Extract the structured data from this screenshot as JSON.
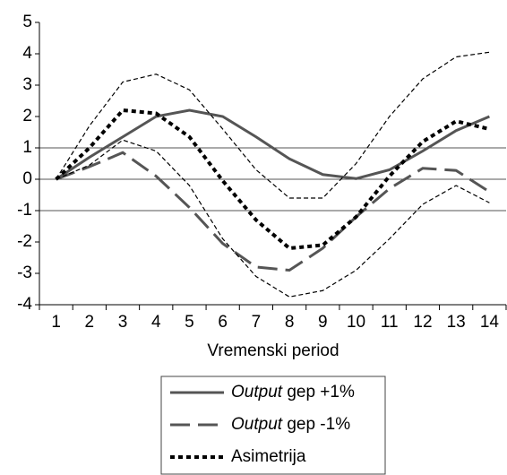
{
  "chart_data": {
    "type": "line",
    "x": [
      1,
      2,
      3,
      4,
      5,
      6,
      7,
      8,
      9,
      10,
      11,
      12,
      13,
      14
    ],
    "xlabel": "Vremenski period",
    "xlim": [
      0.5,
      14.5
    ],
    "xticks": [
      1,
      2,
      3,
      4,
      5,
      6,
      7,
      8,
      9,
      10,
      11,
      12,
      13,
      14
    ],
    "ylim": [
      -4,
      5
    ],
    "yticks": [
      -4,
      -3,
      -2,
      -1,
      0,
      1,
      2,
      3,
      4,
      5
    ],
    "hlines": [
      -1,
      0,
      1
    ],
    "series": [
      {
        "name": "Output gep +1%",
        "color": "#555555",
        "style": "solid",
        "width": 3,
        "values": [
          0,
          0.7,
          1.35,
          2.0,
          2.2,
          2.0,
          1.35,
          0.65,
          0.15,
          0.02,
          0.3,
          0.9,
          1.55,
          2.0
        ]
      },
      {
        "name": "Output gep -1%",
        "color": "#555555",
        "style": "longdash",
        "width": 3,
        "values": [
          0,
          0.4,
          0.85,
          0.1,
          -0.9,
          -2.05,
          -2.8,
          -2.9,
          -2.2,
          -1.2,
          -0.3,
          0.35,
          0.28,
          -0.4
        ]
      },
      {
        "name": "Asimetrija",
        "color": "#000000",
        "style": "dotted",
        "width": 4,
        "values": [
          0,
          1.0,
          2.2,
          2.1,
          1.35,
          -0.05,
          -1.3,
          -2.2,
          -2.1,
          -1.2,
          0.1,
          1.2,
          1.85,
          1.6
        ]
      },
      {
        "color": "#000000",
        "style": "thindash",
        "width": 1.2,
        "values": [
          0,
          1.7,
          3.1,
          3.35,
          2.85,
          1.6,
          0.3,
          -0.6,
          -0.6,
          0.5,
          2.0,
          3.2,
          3.9,
          4.05
        ]
      },
      {
        "color": "#000000",
        "style": "thindash",
        "width": 1.2,
        "values": [
          0,
          0.45,
          1.25,
          0.9,
          -0.2,
          -1.9,
          -3.1,
          -3.75,
          -3.55,
          -2.9,
          -1.9,
          -0.8,
          -0.2,
          -0.75
        ]
      }
    ]
  }
}
